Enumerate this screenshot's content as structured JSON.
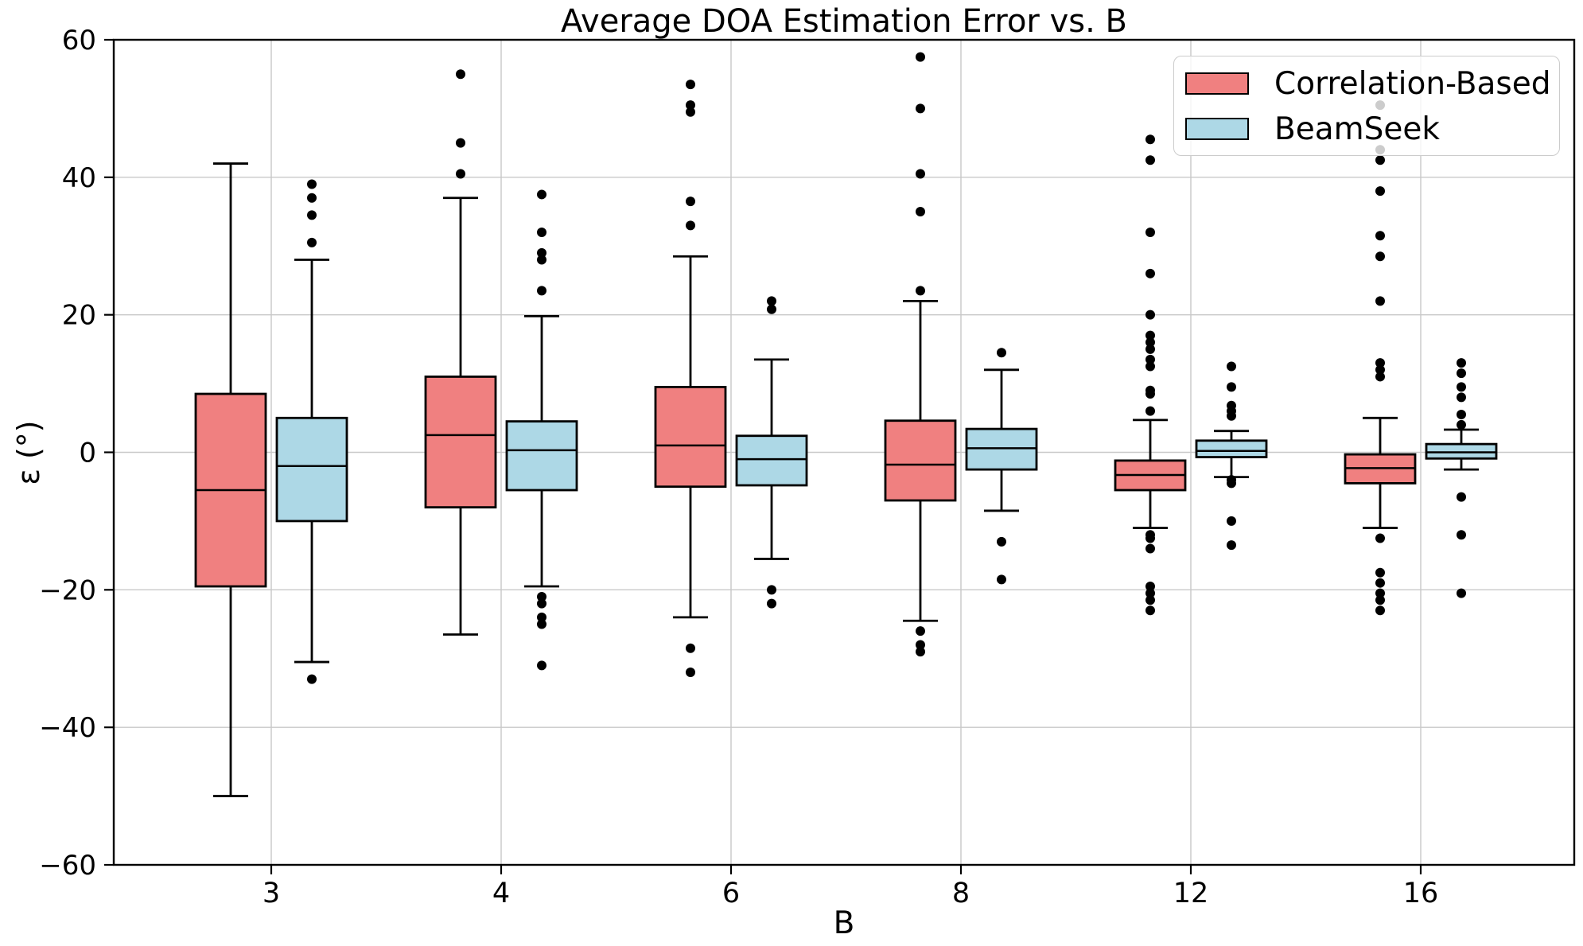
{
  "figure": {
    "title": "Average DOA Estimation Error vs. B",
    "xlabel": "B",
    "ylabel": "ε (°)"
  },
  "chart_data": {
    "type": "boxplot",
    "title": "Average DOA Estimation Error vs. B",
    "xlabel": "B",
    "ylabel": "ε (°)",
    "categories": [
      "3",
      "4",
      "6",
      "8",
      "12",
      "16"
    ],
    "ylim": [
      -60,
      60
    ],
    "yticks": [
      -60,
      -40,
      -20,
      0,
      20,
      40,
      60
    ],
    "grid": true,
    "legend_position": "upper right",
    "style": {
      "edge_color": "#000000",
      "grid_color": "#c8c8c8",
      "flier_color": "#000000",
      "background": "#ffffff"
    },
    "series": [
      {
        "name": "Correlation-Based",
        "fill": "#f08080",
        "boxes": [
          {
            "whislo": -50,
            "q1": -19.5,
            "med": -5.5,
            "q3": 8.5,
            "whishi": 42,
            "fliers": []
          },
          {
            "whislo": -26.5,
            "q1": -8,
            "med": 2.5,
            "q3": 11,
            "whishi": 37,
            "fliers": [
              55,
              45,
              40.5
            ]
          },
          {
            "whislo": -24,
            "q1": -5,
            "med": 1,
            "q3": 9.5,
            "whishi": 28.5,
            "fliers": [
              53.5,
              50.5,
              49.5,
              36.5,
              33,
              -28.5,
              -32
            ]
          },
          {
            "whislo": -24.5,
            "q1": -7,
            "med": -1.8,
            "q3": 4.6,
            "whishi": 22,
            "fliers": [
              57.5,
              50,
              40.5,
              35,
              23.5,
              -26,
              -28,
              -29
            ]
          },
          {
            "whislo": -11,
            "q1": -5.5,
            "med": -3.3,
            "q3": -1.2,
            "whishi": 4.7,
            "fliers": [
              45.5,
              42.5,
              32,
              26,
              20,
              17,
              16,
              15,
              13.5,
              12.5,
              9,
              8.5,
              6,
              -12,
              -12.5,
              -14,
              -19.5,
              -20.5,
              -21.5,
              -23
            ]
          },
          {
            "whislo": -11,
            "q1": -4.5,
            "med": -2.3,
            "q3": -0.3,
            "whishi": 5,
            "fliers": [
              50.5,
              44,
              42.5,
              38,
              31.5,
              28.5,
              22,
              13,
              12,
              11,
              -12.5,
              -17.5,
              -19,
              -20.5,
              -21.5,
              -23
            ]
          }
        ]
      },
      {
        "name": "BeamSeek",
        "fill": "#add8e6",
        "boxes": [
          {
            "whislo": -30.5,
            "q1": -10,
            "med": -2,
            "q3": 5,
            "whishi": 28,
            "fliers": [
              39,
              37,
              34.5,
              30.5,
              -33
            ]
          },
          {
            "whislo": -19.5,
            "q1": -5.5,
            "med": 0.3,
            "q3": 4.5,
            "whishi": 19.8,
            "fliers": [
              37.5,
              32,
              29,
              28,
              23.5,
              -21,
              -22,
              -24,
              -25,
              -31
            ]
          },
          {
            "whislo": -15.5,
            "q1": -4.8,
            "med": -1,
            "q3": 2.4,
            "whishi": 13.5,
            "fliers": [
              22,
              20.8,
              -20,
              -22
            ]
          },
          {
            "whislo": -8.5,
            "q1": -2.5,
            "med": 0.6,
            "q3": 3.4,
            "whishi": 12,
            "fliers": [
              14.5,
              -13,
              -18.5
            ]
          },
          {
            "whislo": -3.6,
            "q1": -0.7,
            "med": 0.2,
            "q3": 1.7,
            "whishi": 3.1,
            "fliers": [
              12.5,
              9.5,
              6.8,
              6,
              5.3,
              -4,
              -4.5,
              -10,
              -13.5
            ]
          },
          {
            "whislo": -2.5,
            "q1": -0.9,
            "med": 0,
            "q3": 1.2,
            "whishi": 3.3,
            "fliers": [
              13,
              11.5,
              9.5,
              8,
              5.5,
              4,
              -6.5,
              -12,
              -20.5
            ]
          }
        ]
      }
    ]
  }
}
